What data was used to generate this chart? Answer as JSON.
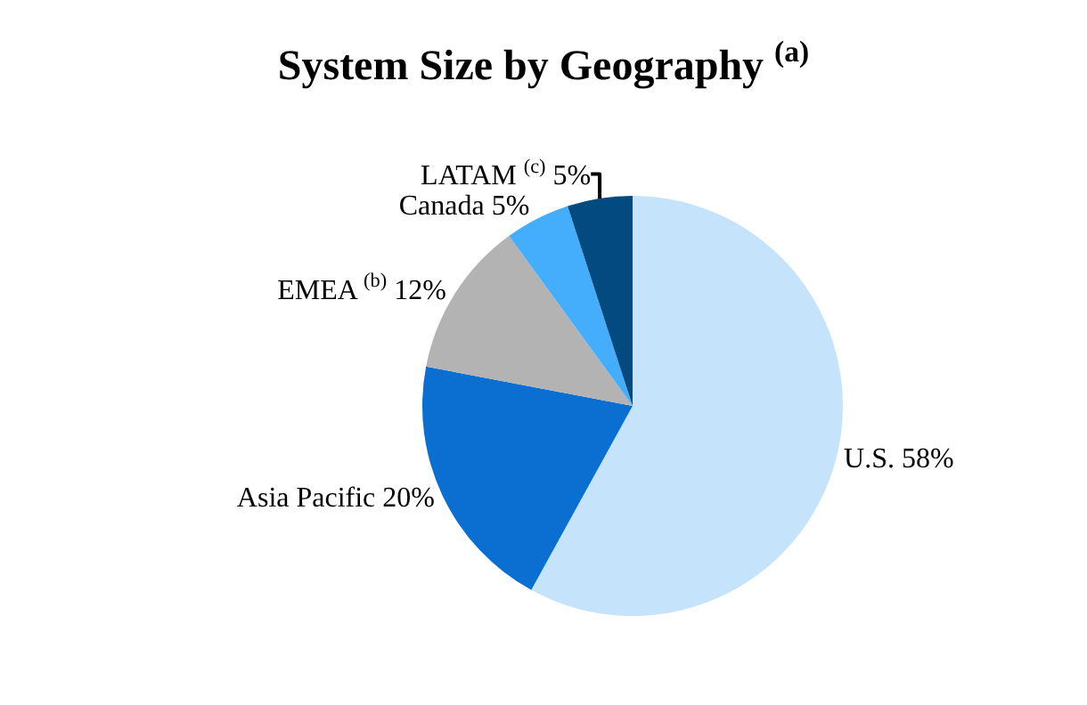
{
  "chart_data": {
    "type": "pie",
    "title": "System Size by Geography $^{(a)}$",
    "categories": [
      "U.S.",
      "Asia Pacific",
      "EMEA $^{(b)}$",
      "Canada",
      "LATAM $^{(c)}$"
    ],
    "values": [
      58,
      20,
      12,
      5,
      5
    ],
    "value_labels": [
      "58%",
      "20%",
      "12%",
      "5%",
      "5%"
    ],
    "colors": [
      "#c5e4fb",
      "#0a6fd0",
      "#b3b3b3",
      "#45aefc",
      "#034a80"
    ],
    "legend": false
  }
}
